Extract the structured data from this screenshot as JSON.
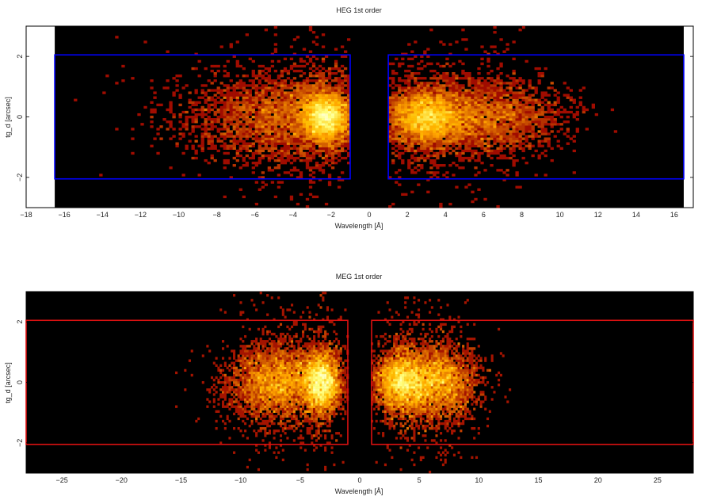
{
  "chart_data": [
    {
      "type": "heatmap",
      "title": "HEG 1st order",
      "xlabel": "Wavelength [Å]",
      "ylabel": "tg_d [arcsec]",
      "xlim": [
        -18,
        17
      ],
      "ylim": [
        -3,
        3
      ],
      "xticks": [
        -18,
        -16,
        -14,
        -12,
        -10,
        -8,
        -6,
        -4,
        -2,
        0,
        2,
        4,
        6,
        8,
        10,
        12,
        14,
        16
      ],
      "yticks": [
        -2,
        0,
        2
      ],
      "data_extent_x": [
        -16.5,
        16.5
      ],
      "background": "#000000",
      "regions": [
        {
          "x": [
            -16.5,
            -1.0
          ],
          "y": [
            -2.05,
            2.05
          ]
        },
        {
          "x": [
            1.0,
            16.5
          ],
          "y": [
            -2.05,
            2.05
          ]
        }
      ],
      "region_color": "#0000ff",
      "intensity_clusters": [
        {
          "x_center": -4.0,
          "x_sigma": 3.5,
          "y_sigma": 0.7,
          "weight": 1.0
        },
        {
          "x_center": -2.3,
          "x_sigma": 0.8,
          "y_sigma": 0.4,
          "weight": 0.9
        },
        {
          "x_center": 3.0,
          "x_sigma": 1.3,
          "y_sigma": 0.45,
          "weight": 1.0
        },
        {
          "x_center": 6.0,
          "x_sigma": 2.5,
          "y_sigma": 0.6,
          "weight": 0.7
        }
      ],
      "gap_x": [
        -1.0,
        1.0
      ]
    },
    {
      "type": "heatmap",
      "title": "MEG 1st order",
      "xlabel": "Wavelength [Å]",
      "ylabel": "tg_d [arcsec]",
      "xlim": [
        -28,
        28
      ],
      "ylim": [
        -3,
        3
      ],
      "xticks": [
        -25,
        -20,
        -15,
        -10,
        -5,
        0,
        5,
        10,
        15,
        20,
        25
      ],
      "yticks": [
        -2,
        0,
        2
      ],
      "data_extent_x": [
        -28,
        28
      ],
      "background": "#000000",
      "regions": [
        {
          "x": [
            -28,
            -1.0
          ],
          "y": [
            -2.05,
            2.05
          ]
        },
        {
          "x": [
            1.0,
            28
          ],
          "y": [
            -2.05,
            2.05
          ]
        }
      ],
      "region_color": "#dd1111",
      "intensity_clusters": [
        {
          "x_center": -7.0,
          "x_sigma": 2.5,
          "y_sigma": 0.6,
          "weight": 1.0
        },
        {
          "x_center": -3.2,
          "x_sigma": 1.0,
          "y_sigma": 0.5,
          "weight": 1.0
        },
        {
          "x_center": 3.5,
          "x_sigma": 1.5,
          "y_sigma": 0.5,
          "weight": 1.0
        },
        {
          "x_center": 6.5,
          "x_sigma": 2.0,
          "y_sigma": 0.6,
          "weight": 0.9
        }
      ],
      "gap_x": [
        -1.0,
        1.0
      ]
    }
  ]
}
